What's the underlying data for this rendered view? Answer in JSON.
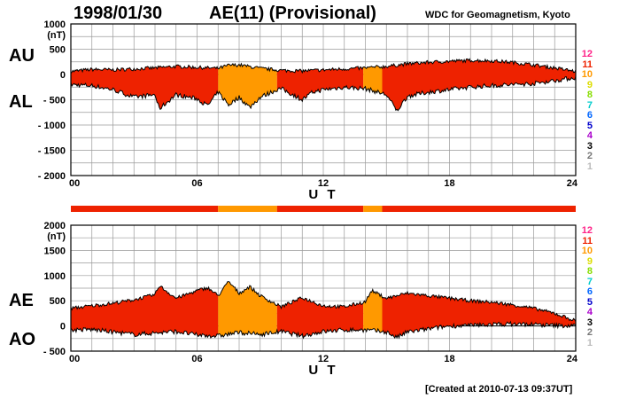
{
  "header": {
    "date": "1998/01/30",
    "title": "AE(11) (Provisional)",
    "source": "WDC for Geomagnetism, Kyoto"
  },
  "footer": {
    "created": "[Created at 2010-07-13 09:37UT]"
  },
  "panel_labels": {
    "au": "AU",
    "al": "AL",
    "ae": "AE",
    "ao": "AO"
  },
  "legend": [
    {
      "label": "12",
      "color": "#ff2288"
    },
    {
      "label": "11",
      "color": "#ee2200"
    },
    {
      "label": "10",
      "color": "#ff9900"
    },
    {
      "label": "9",
      "color": "#dddd00"
    },
    {
      "label": "8",
      "color": "#88dd00"
    },
    {
      "label": "7",
      "color": "#00cccc"
    },
    {
      "label": "6",
      "color": "#0066ff"
    },
    {
      "label": "5",
      "color": "#0000cc"
    },
    {
      "label": "4",
      "color": "#aa00cc"
    },
    {
      "label": "3",
      "color": "#000000"
    },
    {
      "label": "2",
      "color": "#777777"
    },
    {
      "label": "1",
      "color": "#bbbbbb"
    }
  ],
  "chart_data": [
    {
      "type": "area",
      "name": "AU/AL",
      "xlabel": "U T",
      "ylabel": "(nT)",
      "xlim": [
        0,
        24
      ],
      "ylim": [
        -2000,
        1000
      ],
      "x_ticks": [
        "00",
        "06",
        "12",
        "18",
        "24"
      ],
      "y_ticks": [
        "1000",
        "500",
        "0",
        "- 500",
        "- 1000",
        "- 1500",
        "- 2000"
      ],
      "grid": true,
      "upper_key": "AU",
      "lower_key": "AL",
      "upper_x": [
        0,
        1,
        2,
        3,
        4,
        5,
        6,
        7,
        7.5,
        8,
        9,
        9.8,
        10,
        11,
        12,
        13,
        14,
        15,
        16,
        17,
        18,
        19,
        20,
        21,
        22,
        23,
        24
      ],
      "upper_y": [
        60,
        100,
        90,
        110,
        130,
        160,
        140,
        120,
        180,
        190,
        120,
        90,
        80,
        70,
        90,
        110,
        130,
        160,
        210,
        240,
        260,
        280,
        270,
        240,
        190,
        130,
        60
      ],
      "lower_x": [
        0,
        1,
        2,
        3,
        4,
        4.2,
        5,
        6,
        6.5,
        7,
        7.5,
        8,
        8.5,
        9,
        9.8,
        10,
        11,
        11.5,
        12,
        13,
        14,
        15,
        15.5,
        16,
        17,
        18,
        19,
        20,
        21,
        22,
        23,
        24
      ],
      "lower_y": [
        -200,
        -220,
        -300,
        -450,
        -400,
        -680,
        -400,
        -480,
        -620,
        -350,
        -600,
        -450,
        -650,
        -450,
        -300,
        -280,
        -500,
        -350,
        -300,
        -250,
        -280,
        -400,
        -720,
        -430,
        -350,
        -300,
        -250,
        -220,
        -200,
        -180,
        -120,
        -60
      ],
      "segments": [
        {
          "from": 0,
          "to": 7,
          "level": "11"
        },
        {
          "from": 7,
          "to": 9.8,
          "level": "10"
        },
        {
          "from": 9.8,
          "to": 13.9,
          "level": "11"
        },
        {
          "from": 13.9,
          "to": 14.8,
          "level": "10"
        },
        {
          "from": 14.8,
          "to": 24,
          "level": "11"
        }
      ]
    },
    {
      "type": "area",
      "name": "AE/AO",
      "xlabel": "U T",
      "ylabel": "(nT)",
      "xlim": [
        0,
        24
      ],
      "ylim": [
        -500,
        2000
      ],
      "x_ticks": [
        "00",
        "06",
        "12",
        "18",
        "24"
      ],
      "y_ticks": [
        "2000",
        "1500",
        "1000",
        "500",
        "0",
        "- 500"
      ],
      "grid": true,
      "upper_key": "AE",
      "lower_key": "AO",
      "upper_x": [
        0,
        1,
        2,
        3,
        4,
        4.2,
        5,
        6,
        6.5,
        7,
        7.5,
        8,
        8.5,
        9,
        9.8,
        10,
        11,
        12,
        13,
        14,
        14.3,
        15,
        16,
        17,
        18,
        19,
        20,
        21,
        22,
        23,
        24
      ],
      "upper_y": [
        350,
        400,
        450,
        520,
        620,
        800,
        550,
        700,
        760,
        600,
        880,
        650,
        780,
        600,
        420,
        380,
        560,
        400,
        380,
        480,
        700,
        550,
        650,
        600,
        550,
        500,
        470,
        420,
        350,
        250,
        100
      ],
      "lower_x": [
        0,
        1,
        2,
        3,
        4,
        5,
        6,
        7,
        8,
        9,
        10,
        11,
        12,
        13,
        14,
        15,
        15.5,
        16,
        17,
        18,
        19,
        20,
        21,
        22,
        23,
        24
      ],
      "lower_y": [
        -80,
        -70,
        -120,
        -170,
        -140,
        -110,
        -180,
        -200,
        -130,
        -170,
        -110,
        -200,
        -110,
        -80,
        -80,
        -120,
        -230,
        -120,
        -60,
        0,
        10,
        30,
        40,
        30,
        10,
        0
      ],
      "segments": [
        {
          "from": 0,
          "to": 7,
          "level": "11"
        },
        {
          "from": 7,
          "to": 9.8,
          "level": "10"
        },
        {
          "from": 9.8,
          "to": 13.9,
          "level": "11"
        },
        {
          "from": 13.9,
          "to": 14.8,
          "level": "10"
        },
        {
          "from": 14.8,
          "to": 24,
          "level": "11"
        }
      ]
    }
  ]
}
